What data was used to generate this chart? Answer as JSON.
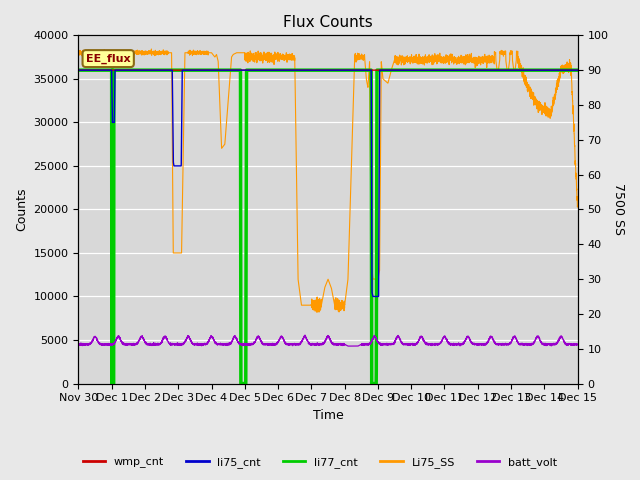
{
  "title": "Flux Counts",
  "ylabel_left": "Counts",
  "ylabel_right": "7500 SS",
  "xlabel": "Time",
  "ylim_left": [
    0,
    40000
  ],
  "ylim_right": [
    0,
    100
  ],
  "fig_facecolor": "#e8e8e8",
  "plot_bg_color": "#d8d8d8",
  "annotation_text": "EE_flux",
  "legend_labels": [
    "wmp_cnt",
    "li75_cnt",
    "li77_cnt",
    "Li75_SS",
    "batt_volt"
  ],
  "wmp_cnt_color": "#cc0000",
  "li75_cnt_color": "#0000cc",
  "li77_cnt_color": "#00cc00",
  "Li75_SS_color": "#ff9900",
  "batt_volt_color": "#9900cc",
  "yticks_left": [
    0,
    5000,
    10000,
    15000,
    20000,
    25000,
    30000,
    35000,
    40000
  ],
  "yticks_right": [
    0,
    10,
    20,
    30,
    40,
    50,
    60,
    70,
    80,
    90,
    100
  ],
  "xlim": [
    0,
    15
  ],
  "tick_labels": [
    "Nov 30",
    "Dec 1",
    "Dec 2",
    "Dec 3",
    "Dec 4",
    "Dec 5",
    "Dec 6",
    "Dec 7",
    "Dec 8",
    "Dec 9",
    "Dec 10",
    "Dec 11",
    "Dec 12",
    "Dec 13",
    "Dec 14",
    "Dec 15"
  ]
}
